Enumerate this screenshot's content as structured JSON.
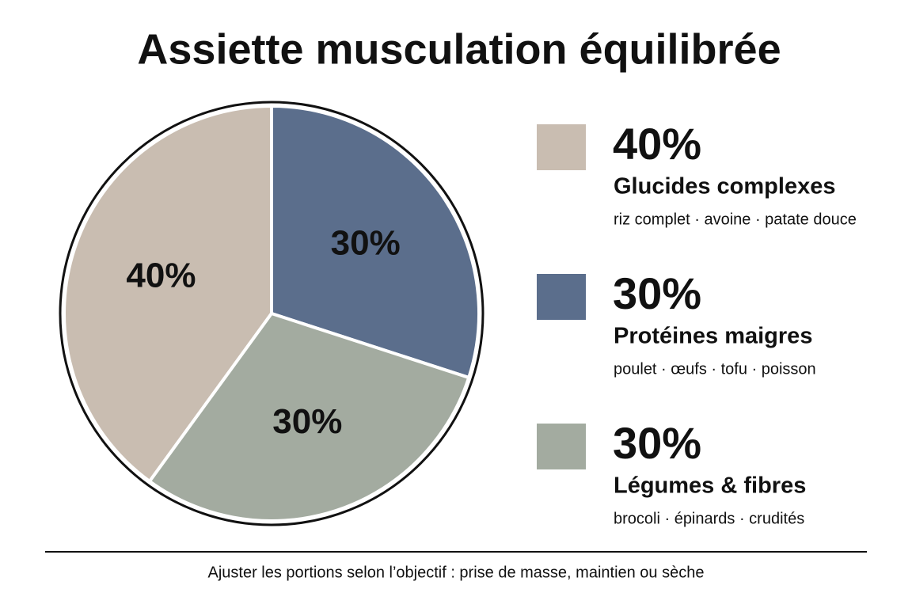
{
  "chart_data": {
    "type": "pie",
    "title": "Assiette musculation équilibrée",
    "categories": [
      "Glucides complexes",
      "Protéines maigres",
      "Légumes & fibres"
    ],
    "values": [
      40,
      30,
      30
    ],
    "value_labels": [
      "40%",
      "30%",
      "30%"
    ],
    "descriptions": [
      "riz complet · avoine · patate douce",
      "poulet · œufs · tofu · poisson",
      "brocoli · épinards · crudités"
    ],
    "colors": [
      "#c9bdb1",
      "#5b6e8c",
      "#a3aba0"
    ],
    "note": "Ajuster les portions selon l’objectif : prise de masse, maintien ou sèche"
  }
}
